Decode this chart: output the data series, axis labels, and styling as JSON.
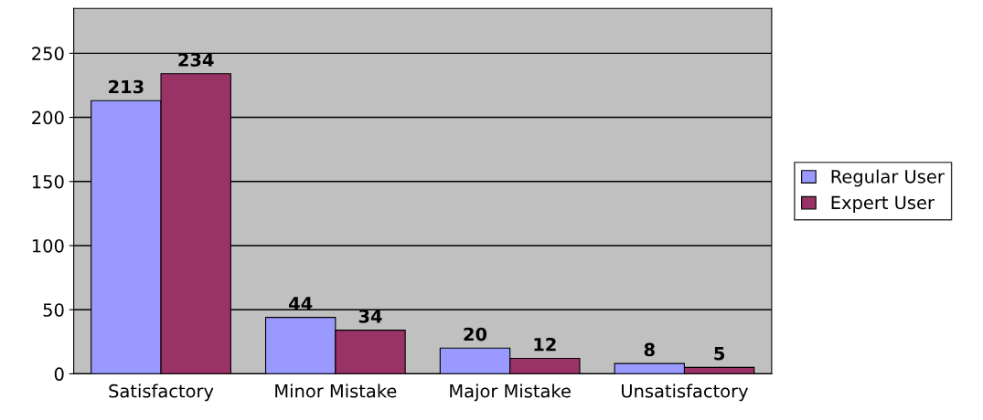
{
  "chart_data": {
    "type": "bar",
    "categories": [
      "Satisfactory",
      "Minor Mistake",
      "Major Mistake",
      "Unsatisfactory"
    ],
    "series": [
      {
        "name": "Regular User",
        "color": "#9999ff",
        "values": [
          213,
          44,
          20,
          8
        ]
      },
      {
        "name": "Expert User",
        "color": "#993366",
        "values": [
          234,
          34,
          12,
          5
        ]
      }
    ],
    "ylim": [
      0,
      285
    ],
    "yticks": [
      0,
      50,
      100,
      150,
      200,
      250
    ],
    "grid": "y",
    "legend": "right",
    "data_labels": true
  }
}
